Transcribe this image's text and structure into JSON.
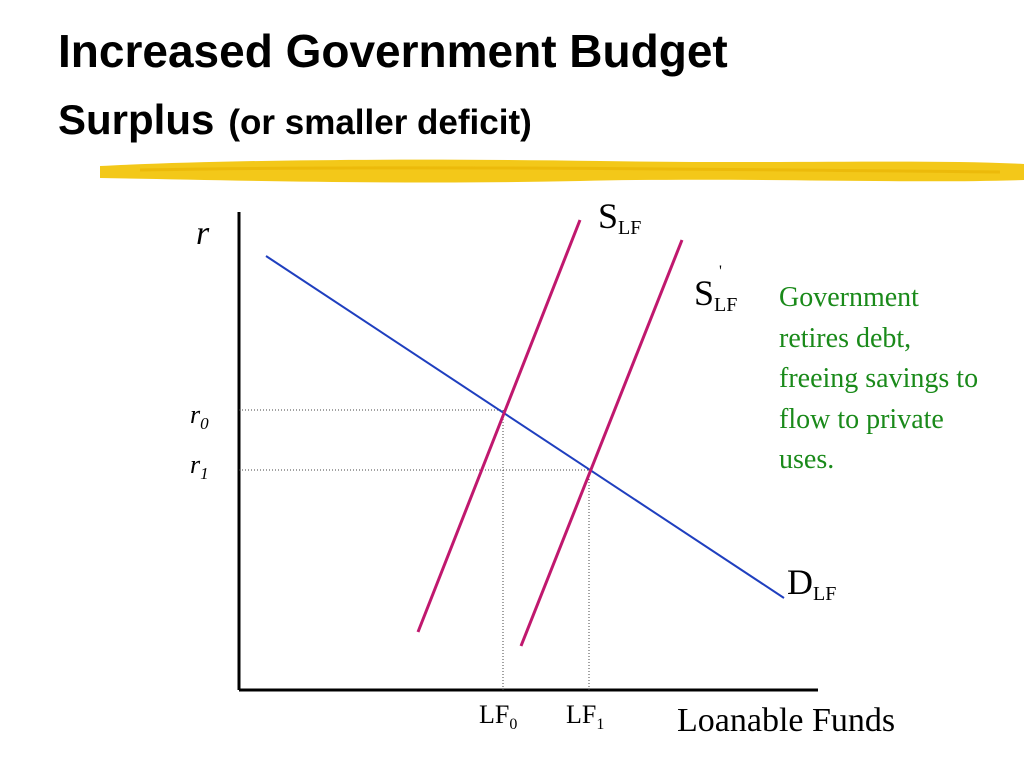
{
  "slide": {
    "title_main": "Increased Government Budget",
    "title_line2": "Surplus",
    "title_paren": "(or smaller deficit)",
    "highlight_color": "#f2c200"
  },
  "diagram": {
    "y_axis_label": "r",
    "x_axis_label": "Loanable Funds",
    "r0": {
      "base": "r",
      "sub": "0"
    },
    "r1": {
      "base": "r",
      "sub": "1"
    },
    "lf0": {
      "base": "LF",
      "sub": "0"
    },
    "lf1": {
      "base": "LF",
      "sub": "1"
    },
    "supply_label": {
      "base": "S",
      "sub": "LF"
    },
    "supply_shifted_label": {
      "base": "S",
      "sub": "LF",
      "mark": "'"
    },
    "demand_label": {
      "base": "D",
      "sub": "LF"
    },
    "note": "Government retires debt, freeing savings to flow to private uses.",
    "colors": {
      "demand": "#1f3fbf",
      "supply": "#c0186e",
      "note": "#1a8a1a",
      "axes": "#000000"
    }
  }
}
